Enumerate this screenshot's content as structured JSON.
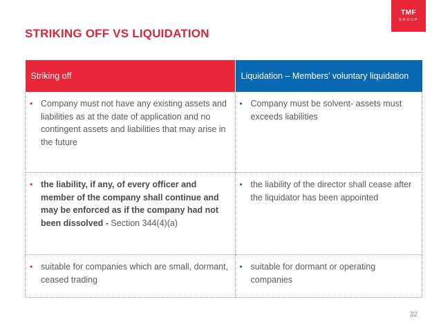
{
  "slide": {
    "title": "STRIKING OFF VS LIQUIDATION",
    "logo": {
      "line1": "TMF",
      "line2": "GROUP"
    },
    "page_number": "32",
    "colors": {
      "accent_red": "#e8283a",
      "accent_blue": "#0869b2",
      "title": "#d7263d"
    }
  },
  "table": {
    "headers": {
      "left": "Striking off",
      "right": "Liquidation – Members’ voluntary liquidation"
    },
    "rows": [
      {
        "left": {
          "bold": "",
          "text": "Company must not have any existing assets and liabilities as at the date of application and no contingent assets and liabilities that may arise in the future"
        },
        "right": {
          "text": "Company must be solvent- assets must exceeds liabilities"
        }
      },
      {
        "left": {
          "bold": "the liability, if any, of every officer and member of the company shall continue and may be enforced as if the company had not been dissolved -",
          "text": " Section 344(4)(a)"
        },
        "right": {
          "text": "the liability of the director shall cease after the liquidator has been appointed"
        }
      },
      {
        "left": {
          "bold": "",
          "text": "suitable for companies which are small, dormant, ceased  trading"
        },
        "right": {
          "text": "suitable for dormant or operating companies"
        }
      }
    ]
  }
}
